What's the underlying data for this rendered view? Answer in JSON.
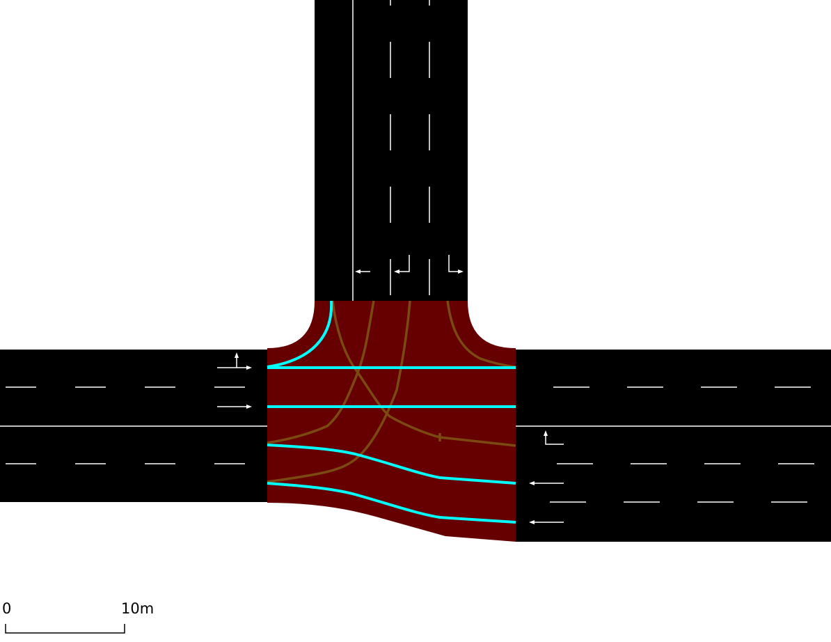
{
  "colors": {
    "background": "#ffffff",
    "road": "#000000",
    "junction": "#660000",
    "lane_marking": "#ffffff",
    "connection_major": "#00ffff",
    "connection_minor": "#7a4a10",
    "scale": "#000000"
  },
  "scale_bar": {
    "start_label": "0",
    "end_label": "10m"
  },
  "icons": {
    "direction_arrow": "lane-direction-arrow-icon",
    "turn_arrow": "turn-arrow-icon"
  }
}
